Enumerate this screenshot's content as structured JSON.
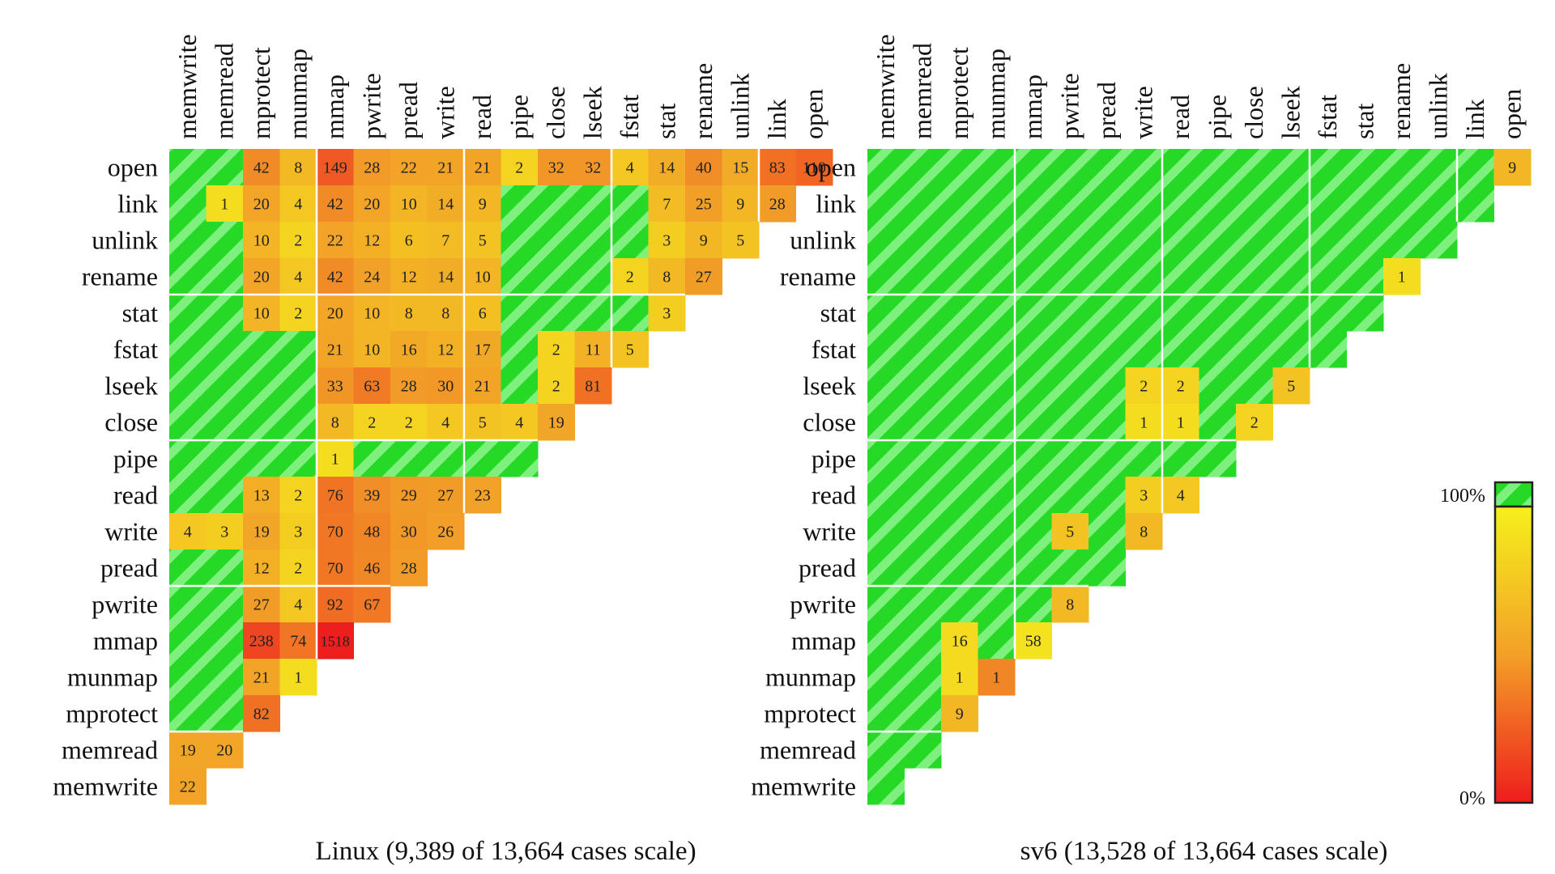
{
  "chart_data": [
    {
      "type": "heatmap",
      "title": "Linux (9,389 of 13,664 cases scale)",
      "columns": [
        "memwrite",
        "memread",
        "mprotect",
        "munmap",
        "mmap",
        "pwrite",
        "pread",
        "write",
        "read",
        "pipe",
        "close",
        "lseek",
        "fstat",
        "stat",
        "rename",
        "unlink",
        "link",
        "open"
      ],
      "rows": [
        "open",
        "link",
        "unlink",
        "rename",
        "stat",
        "fstat",
        "lseek",
        "close",
        "pipe",
        "read",
        "write",
        "pread",
        "pwrite",
        "mmap",
        "munmap",
        "mprotect",
        "memread",
        "memwrite"
      ],
      "cells": [
        [
          null,
          null,
          42,
          8,
          149,
          28,
          22,
          21,
          21,
          2,
          32,
          32,
          4,
          14,
          40,
          15,
          83,
          110
        ],
        [
          null,
          1,
          20,
          4,
          42,
          20,
          10,
          14,
          9,
          null,
          null,
          null,
          null,
          7,
          25,
          9,
          28
        ],
        [
          null,
          null,
          10,
          2,
          22,
          12,
          6,
          7,
          5,
          null,
          null,
          null,
          null,
          3,
          9,
          5
        ],
        [
          null,
          null,
          20,
          4,
          42,
          24,
          12,
          14,
          10,
          null,
          null,
          null,
          2,
          8,
          27
        ],
        [
          null,
          null,
          10,
          2,
          20,
          10,
          8,
          8,
          6,
          null,
          null,
          null,
          null,
          3
        ],
        [
          null,
          null,
          null,
          null,
          21,
          10,
          16,
          12,
          17,
          null,
          2,
          11,
          5
        ],
        [
          null,
          null,
          null,
          null,
          33,
          63,
          28,
          30,
          21,
          null,
          2,
          81
        ],
        [
          null,
          null,
          null,
          null,
          8,
          2,
          2,
          4,
          5,
          4,
          19
        ],
        [
          null,
          null,
          null,
          null,
          1,
          null,
          null,
          null,
          null,
          null
        ],
        [
          null,
          null,
          13,
          2,
          76,
          39,
          29,
          27,
          23
        ],
        [
          4,
          3,
          19,
          3,
          70,
          48,
          30,
          26
        ],
        [
          null,
          null,
          12,
          2,
          70,
          46,
          28
        ],
        [
          null,
          null,
          27,
          4,
          92,
          67
        ],
        [
          null,
          null,
          238,
          74,
          1518
        ],
        [
          null,
          null,
          21,
          1
        ],
        [
          null,
          null,
          82
        ],
        [
          19,
          20
        ],
        [
          22
        ]
      ],
      "scale_max": 3.8,
      "note_empty_cells": "green striped = commutative (100% scalable)"
    },
    {
      "type": "heatmap",
      "title": "sv6 (13,528 of 13,664 cases scale)",
      "columns": [
        "memwrite",
        "memread",
        "mprotect",
        "munmap",
        "mmap",
        "pwrite",
        "pread",
        "write",
        "read",
        "pipe",
        "close",
        "lseek",
        "fstat",
        "stat",
        "rename",
        "unlink",
        "link",
        "open"
      ],
      "rows": [
        "open",
        "link",
        "unlink",
        "rename",
        "stat",
        "fstat",
        "lseek",
        "close",
        "pipe",
        "read",
        "write",
        "pread",
        "pwrite",
        "mmap",
        "munmap",
        "mprotect",
        "memread",
        "memwrite"
      ],
      "cells": [
        [
          null,
          null,
          null,
          null,
          null,
          null,
          null,
          null,
          null,
          null,
          null,
          null,
          null,
          null,
          null,
          null,
          null,
          9
        ],
        [
          null,
          null,
          null,
          null,
          null,
          null,
          null,
          null,
          null,
          null,
          null,
          null,
          null,
          null,
          null,
          null,
          null
        ],
        [
          null,
          null,
          null,
          null,
          null,
          null,
          null,
          null,
          null,
          null,
          null,
          null,
          null,
          null,
          null,
          null
        ],
        [
          null,
          null,
          null,
          null,
          null,
          null,
          null,
          null,
          null,
          null,
          null,
          null,
          null,
          null,
          1
        ],
        [
          null,
          null,
          null,
          null,
          null,
          null,
          null,
          null,
          null,
          null,
          null,
          null,
          null,
          null
        ],
        [
          null,
          null,
          null,
          null,
          null,
          null,
          null,
          null,
          null,
          null,
          null,
          null,
          null
        ],
        [
          null,
          null,
          null,
          null,
          null,
          null,
          null,
          2,
          2,
          null,
          null,
          5
        ],
        [
          null,
          null,
          null,
          null,
          null,
          null,
          null,
          1,
          1,
          null,
          2
        ],
        [
          null,
          null,
          null,
          null,
          null,
          null,
          null,
          null,
          null,
          null
        ],
        [
          null,
          null,
          null,
          null,
          null,
          null,
          null,
          3,
          4
        ],
        [
          null,
          null,
          null,
          null,
          null,
          5,
          null,
          8
        ],
        [
          null,
          null,
          null,
          null,
          null,
          null,
          null
        ],
        [
          null,
          null,
          null,
          null,
          null,
          8
        ],
        [
          null,
          null,
          16,
          null,
          58
        ],
        [
          null,
          null,
          1,
          1
        ],
        [
          null,
          null,
          9
        ],
        [
          null,
          null
        ],
        [
          null
        ]
      ],
      "cell_tint": {
        "13,2": 0.12,
        "13,4": 0.08,
        "14,2": 0.12,
        "14,3": 0.6
      },
      "scale_max": 3.8
    }
  ],
  "legend": {
    "top_label": "100%",
    "bottom_label": "0%",
    "colors": {
      "commutative": "#27d927",
      "stripe": "#7ef07e",
      "yellow": "#f2ee1c",
      "orange": "#f0a028",
      "red": "#ee1d1d"
    }
  }
}
